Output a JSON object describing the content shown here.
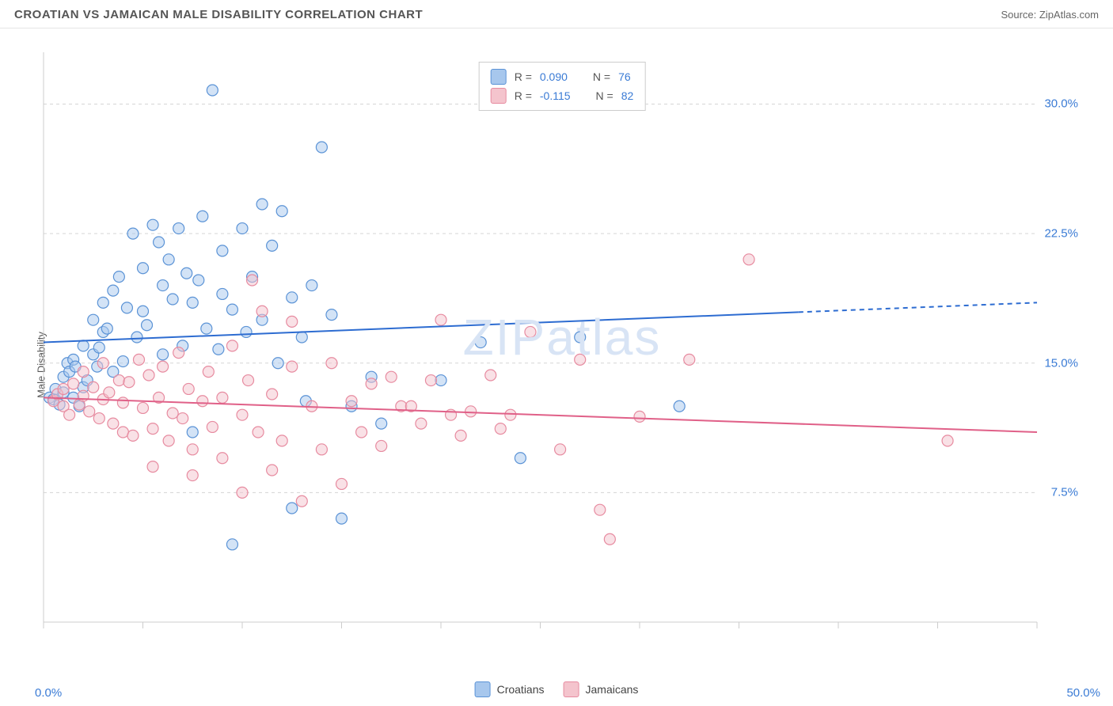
{
  "header": {
    "title": "CROATIAN VS JAMAICAN MALE DISABILITY CORRELATION CHART",
    "source": "Source: ZipAtlas.com"
  },
  "chart": {
    "type": "scatter",
    "watermark": "ZIPatlas",
    "y_axis_label": "Male Disability",
    "xlim": [
      0,
      50
    ],
    "ylim": [
      0,
      33
    ],
    "x_ticks": [
      0,
      5,
      10,
      15,
      20,
      25,
      30,
      35,
      40,
      45,
      50
    ],
    "x_tick_labels_shown": {
      "0": "0.0%",
      "50": "50.0%"
    },
    "y_gridlines": [
      7.5,
      15.0,
      22.5,
      30.0
    ],
    "y_tick_labels": [
      "7.5%",
      "15.0%",
      "22.5%",
      "30.0%"
    ],
    "background_color": "#ffffff",
    "grid_color": "#d5d5d5",
    "grid_dash": "4,4",
    "axis_color": "#cccccc",
    "marker_radius": 7,
    "marker_fill_opacity": 0.5,
    "marker_stroke_width": 1.2,
    "line_width": 2,
    "series": [
      {
        "name": "Croatians",
        "color_fill": "#a7c7ed",
        "color_stroke": "#5b93d6",
        "line_color": "#2d6cd1",
        "R": "0.090",
        "N": "76",
        "trend": {
          "x1": 0,
          "y1": 16.2,
          "x2": 50,
          "y2": 18.5,
          "solid_until_x": 38
        },
        "points": [
          [
            0.3,
            13.0
          ],
          [
            0.5,
            12.9
          ],
          [
            0.6,
            13.5
          ],
          [
            0.8,
            12.6
          ],
          [
            1.0,
            14.2
          ],
          [
            1.0,
            13.3
          ],
          [
            1.2,
            15.0
          ],
          [
            1.3,
            14.5
          ],
          [
            1.5,
            15.2
          ],
          [
            1.5,
            13.0
          ],
          [
            1.6,
            14.8
          ],
          [
            1.8,
            12.5
          ],
          [
            2.0,
            16.0
          ],
          [
            2.0,
            13.6
          ],
          [
            2.2,
            14.0
          ],
          [
            2.5,
            15.5
          ],
          [
            2.5,
            17.5
          ],
          [
            2.7,
            14.8
          ],
          [
            2.8,
            15.9
          ],
          [
            3.0,
            18.5
          ],
          [
            3.0,
            16.8
          ],
          [
            3.2,
            17.0
          ],
          [
            3.5,
            19.2
          ],
          [
            3.5,
            14.5
          ],
          [
            3.8,
            20.0
          ],
          [
            4.0,
            15.1
          ],
          [
            4.2,
            18.2
          ],
          [
            4.5,
            22.5
          ],
          [
            4.7,
            16.5
          ],
          [
            5.0,
            20.5
          ],
          [
            5.0,
            18.0
          ],
          [
            5.2,
            17.2
          ],
          [
            5.5,
            23.0
          ],
          [
            5.8,
            22.0
          ],
          [
            6.0,
            15.5
          ],
          [
            6.0,
            19.5
          ],
          [
            6.3,
            21.0
          ],
          [
            6.5,
            18.7
          ],
          [
            6.8,
            22.8
          ],
          [
            7.0,
            16.0
          ],
          [
            7.2,
            20.2
          ],
          [
            7.5,
            18.5
          ],
          [
            7.5,
            11.0
          ],
          [
            7.8,
            19.8
          ],
          [
            8.0,
            23.5
          ],
          [
            8.2,
            17.0
          ],
          [
            8.5,
            30.8
          ],
          [
            8.8,
            15.8
          ],
          [
            9.0,
            21.5
          ],
          [
            9.0,
            19.0
          ],
          [
            9.5,
            18.1
          ],
          [
            9.5,
            4.5
          ],
          [
            10.0,
            22.8
          ],
          [
            10.2,
            16.8
          ],
          [
            10.5,
            20.0
          ],
          [
            11.0,
            24.2
          ],
          [
            11.0,
            17.5
          ],
          [
            11.5,
            21.8
          ],
          [
            11.8,
            15.0
          ],
          [
            12.0,
            23.8
          ],
          [
            12.5,
            18.8
          ],
          [
            12.5,
            6.6
          ],
          [
            13.0,
            16.5
          ],
          [
            13.2,
            12.8
          ],
          [
            13.5,
            19.5
          ],
          [
            14.0,
            27.5
          ],
          [
            14.5,
            17.8
          ],
          [
            15.0,
            6.0
          ],
          [
            15.5,
            12.5
          ],
          [
            16.5,
            14.2
          ],
          [
            17.0,
            11.5
          ],
          [
            20.0,
            14.0
          ],
          [
            22.0,
            16.2
          ],
          [
            24.0,
            9.5
          ],
          [
            27.0,
            16.5
          ],
          [
            32.0,
            12.5
          ]
        ]
      },
      {
        "name": "Jamaicans",
        "color_fill": "#f4c4cd",
        "color_stroke": "#e78ba0",
        "line_color": "#e06088",
        "R": "-0.115",
        "N": "82",
        "trend": {
          "x1": 0,
          "y1": 13.0,
          "x2": 50,
          "y2": 11.0,
          "solid_until_x": 50
        },
        "points": [
          [
            0.5,
            12.8
          ],
          [
            0.7,
            13.2
          ],
          [
            1.0,
            12.5
          ],
          [
            1.0,
            13.5
          ],
          [
            1.3,
            12.0
          ],
          [
            1.5,
            13.8
          ],
          [
            1.8,
            12.6
          ],
          [
            2.0,
            13.1
          ],
          [
            2.0,
            14.5
          ],
          [
            2.3,
            12.2
          ],
          [
            2.5,
            13.6
          ],
          [
            2.8,
            11.8
          ],
          [
            3.0,
            12.9
          ],
          [
            3.0,
            15.0
          ],
          [
            3.3,
            13.3
          ],
          [
            3.5,
            11.5
          ],
          [
            3.8,
            14.0
          ],
          [
            4.0,
            12.7
          ],
          [
            4.0,
            11.0
          ],
          [
            4.3,
            13.9
          ],
          [
            4.5,
            10.8
          ],
          [
            4.8,
            15.2
          ],
          [
            5.0,
            12.4
          ],
          [
            5.3,
            14.3
          ],
          [
            5.5,
            11.2
          ],
          [
            5.5,
            9.0
          ],
          [
            5.8,
            13.0
          ],
          [
            6.0,
            14.8
          ],
          [
            6.3,
            10.5
          ],
          [
            6.5,
            12.1
          ],
          [
            6.8,
            15.6
          ],
          [
            7.0,
            11.8
          ],
          [
            7.3,
            13.5
          ],
          [
            7.5,
            10.0
          ],
          [
            7.5,
            8.5
          ],
          [
            8.0,
            12.8
          ],
          [
            8.3,
            14.5
          ],
          [
            8.5,
            11.3
          ],
          [
            9.0,
            13.0
          ],
          [
            9.0,
            9.5
          ],
          [
            9.5,
            16.0
          ],
          [
            10.0,
            12.0
          ],
          [
            10.0,
            7.5
          ],
          [
            10.3,
            14.0
          ],
          [
            10.5,
            19.8
          ],
          [
            10.8,
            11.0
          ],
          [
            11.0,
            18.0
          ],
          [
            11.5,
            13.2
          ],
          [
            11.5,
            8.8
          ],
          [
            12.0,
            10.5
          ],
          [
            12.5,
            14.8
          ],
          [
            12.5,
            17.4
          ],
          [
            13.0,
            7.0
          ],
          [
            13.5,
            12.5
          ],
          [
            14.0,
            10.0
          ],
          [
            14.5,
            15.0
          ],
          [
            15.0,
            8.0
          ],
          [
            15.5,
            12.8
          ],
          [
            16.0,
            11.0
          ],
          [
            16.5,
            13.8
          ],
          [
            17.0,
            10.2
          ],
          [
            17.5,
            14.2
          ],
          [
            18.0,
            12.5
          ],
          [
            19.0,
            11.5
          ],
          [
            19.5,
            14.0
          ],
          [
            20.0,
            17.5
          ],
          [
            20.5,
            12.0
          ],
          [
            21.0,
            10.8
          ],
          [
            22.5,
            14.3
          ],
          [
            23.0,
            11.2
          ],
          [
            23.5,
            12.0
          ],
          [
            24.5,
            16.8
          ],
          [
            26.0,
            10.0
          ],
          [
            27.0,
            15.2
          ],
          [
            28.0,
            6.5
          ],
          [
            28.5,
            4.8
          ],
          [
            30.0,
            11.9
          ],
          [
            32.5,
            15.2
          ],
          [
            35.5,
            21.0
          ],
          [
            45.5,
            10.5
          ],
          [
            18.5,
            12.5
          ],
          [
            21.5,
            12.2
          ]
        ]
      }
    ],
    "legend_top": {
      "r_label": "R =",
      "n_label": "N ="
    },
    "legend_bottom": [
      "Croatians",
      "Jamaicans"
    ]
  }
}
